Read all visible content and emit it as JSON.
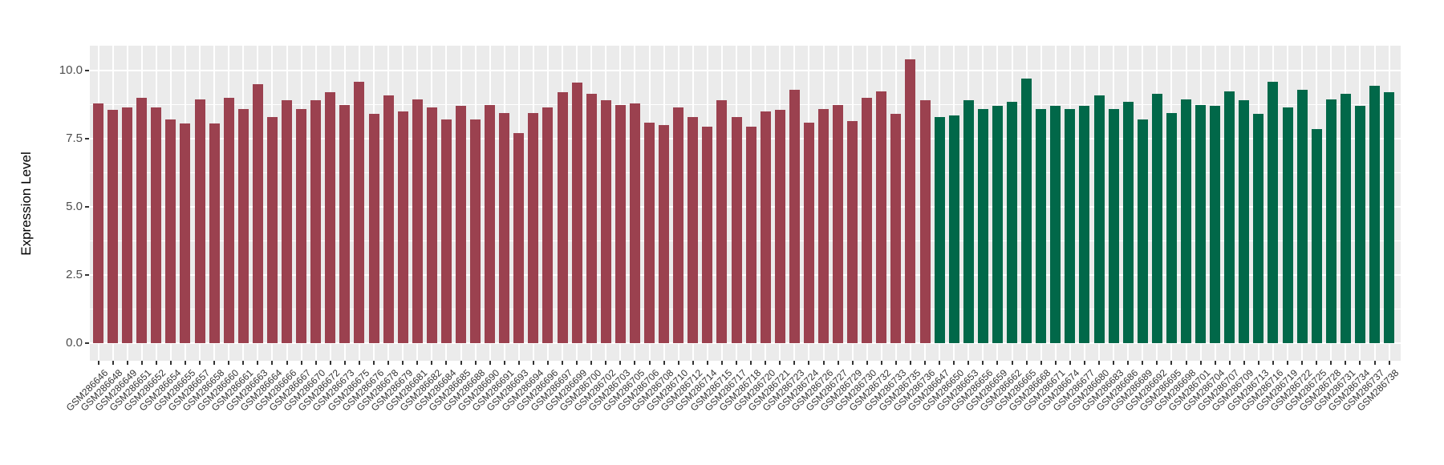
{
  "chart_data": {
    "type": "bar",
    "title": "",
    "xlabel": "",
    "ylabel": "Expression Level",
    "yticks": [
      "0.0",
      "2.5",
      "5.0",
      "7.5",
      "10.0"
    ],
    "ylim": [
      0,
      10.9
    ],
    "grid": true,
    "legend": false,
    "panel_background": "#EBEBEB",
    "gridline_color": "#FFFFFF",
    "groups": [
      {
        "name": "group-1",
        "color": "#9B414F",
        "labels": [
          "GSM286646",
          "GSM286648",
          "GSM286649",
          "GSM286651",
          "GSM286652",
          "GSM286654",
          "GSM286655",
          "GSM286657",
          "GSM286658",
          "GSM286660",
          "GSM286661",
          "GSM286663",
          "GSM286664",
          "GSM286666",
          "GSM286667",
          "GSM286670",
          "GSM286672",
          "GSM286673",
          "GSM286675",
          "GSM286676",
          "GSM286678",
          "GSM286679",
          "GSM286681",
          "GSM286682",
          "GSM286684",
          "GSM286685",
          "GSM286688",
          "GSM286690",
          "GSM286691",
          "GSM286693",
          "GSM286694",
          "GSM286696",
          "GSM286697",
          "GSM286699",
          "GSM286700",
          "GSM286702",
          "GSM286703",
          "GSM286705",
          "GSM286706",
          "GSM286708",
          "GSM286710",
          "GSM286712",
          "GSM286714",
          "GSM286715",
          "GSM286717",
          "GSM286718",
          "GSM286720",
          "GSM286721",
          "GSM286723",
          "GSM286724",
          "GSM286726",
          "GSM286727",
          "GSM286729",
          "GSM286730",
          "GSM286732",
          "GSM286733",
          "GSM286735",
          "GSM286736"
        ],
        "values": [
          8.8,
          8.55,
          8.65,
          9.0,
          8.65,
          8.2,
          8.05,
          8.95,
          8.05,
          9.0,
          8.6,
          9.5,
          8.3,
          8.9,
          8.6,
          8.9,
          9.2,
          8.75,
          9.6,
          8.4,
          9.1,
          8.5,
          8.95,
          8.65,
          8.2,
          8.7,
          8.2,
          8.75,
          8.45,
          7.7,
          8.45,
          8.65,
          9.2,
          9.55,
          9.15,
          8.9,
          8.75,
          8.8,
          8.1,
          8.0,
          8.65,
          8.3,
          7.95,
          8.9,
          8.3,
          7.95,
          8.5,
          8.55,
          9.3,
          8.1,
          8.6,
          8.75,
          8.15,
          9.0,
          9.25,
          8.4,
          10.4,
          8.9
        ]
      },
      {
        "name": "group-2",
        "color": "#016849",
        "labels": [
          "GSM286647",
          "GSM286650",
          "GSM286653",
          "GSM286656",
          "GSM286659",
          "GSM286662",
          "GSM286665",
          "GSM286668",
          "GSM286671",
          "GSM286674",
          "GSM286677",
          "GSM286680",
          "GSM286683",
          "GSM286686",
          "GSM286689",
          "GSM286692",
          "GSM286695",
          "GSM286698",
          "GSM286701",
          "GSM286704",
          "GSM286707",
          "GSM286709",
          "GSM286713",
          "GSM286716",
          "GSM286719",
          "GSM286722",
          "GSM286725",
          "GSM286728",
          "GSM286731",
          "GSM286734",
          "GSM286737",
          "GSM286738"
        ],
        "values": [
          8.3,
          8.35,
          8.9,
          8.6,
          8.7,
          8.85,
          9.7,
          8.6,
          8.7,
          8.6,
          8.7,
          9.1,
          8.6,
          8.85,
          8.2,
          9.15,
          8.45,
          8.95,
          8.75,
          8.7,
          9.25,
          8.9,
          8.4,
          9.6,
          8.65,
          9.3,
          7.85,
          8.95,
          9.15,
          8.7,
          9.45,
          9.2
        ]
      }
    ]
  }
}
